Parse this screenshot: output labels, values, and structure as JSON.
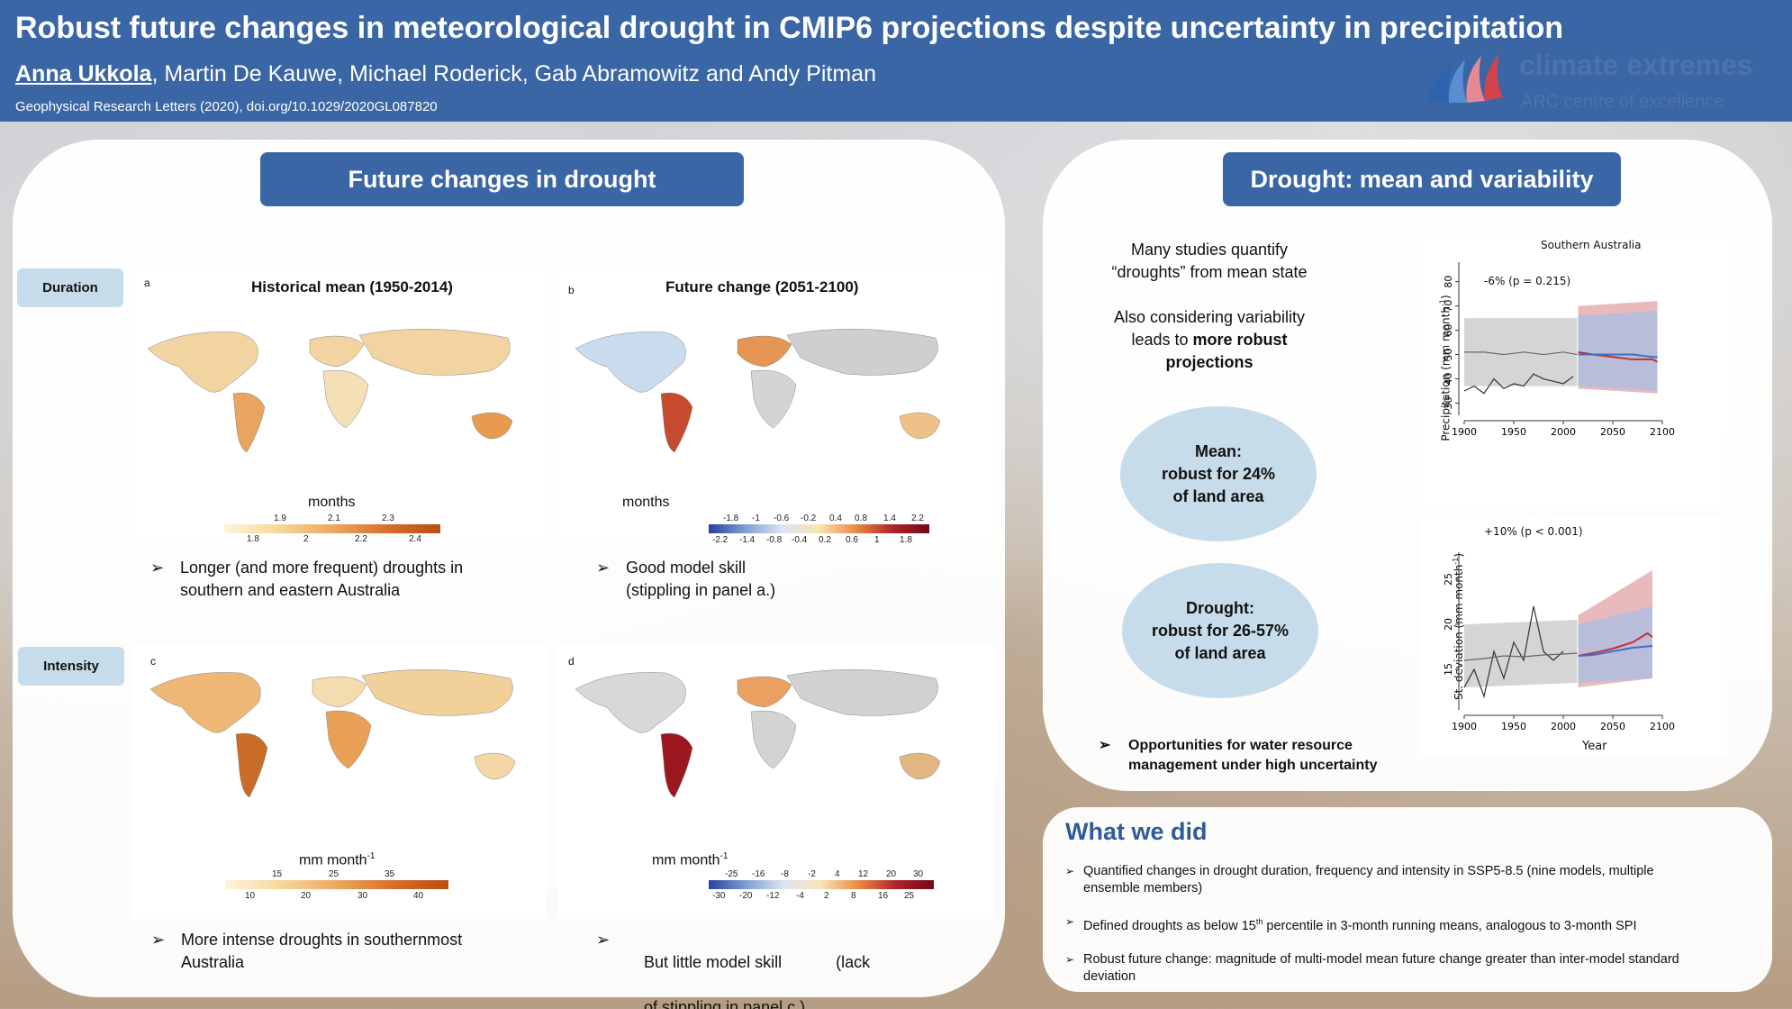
{
  "header": {
    "title": "Robust future changes in meteorological drought in CMIP6 projections despite uncertainty in precipitation",
    "lead_author": "Anna Ukkola",
    "other_authors": ", Martin De Kauwe, Michael Roderick, Gab Abramowitz and Andy Pitman",
    "citation": "Geophysical Research Letters (2020), doi.org/10.1029/2020GL087820",
    "logo_line1": "climate extremes",
    "logo_line2": "ARC centre of excellence"
  },
  "left": {
    "heading": "Future changes in drought",
    "duration_label": "Duration",
    "intensity_label": "Intensity",
    "map_a": {
      "letter": "a",
      "title": "Historical mean (1950-2014)",
      "unit": "months",
      "ticks_top": [
        "1.9",
        "2.1",
        "2.3"
      ],
      "ticks_bottom": [
        "1.8",
        "2",
        "2.2",
        "2.4"
      ]
    },
    "map_b": {
      "letter": "b",
      "title": "Future change (2051-2100)",
      "unit": "months",
      "ticks_top": [
        "-1.8",
        "-1",
        "-0.6",
        "-0.2",
        "0.4",
        "0.8",
        "1.4",
        "2.2"
      ],
      "ticks_bottom": [
        "-2.2",
        "-1.4",
        "-0.8",
        "-0.4",
        "0.2",
        "0.6",
        "1",
        "1.8"
      ]
    },
    "map_c": {
      "letter": "c",
      "unit_main": "mm month",
      "unit_sup": "-1",
      "ticks_top": [
        "15",
        "25",
        "35"
      ],
      "ticks_bottom": [
        "10",
        "20",
        "30",
        "40"
      ]
    },
    "map_d": {
      "letter": "d",
      "unit_main": "mm month",
      "unit_sup": "-1",
      "ticks_top": [
        "-25",
        "-16",
        "-8",
        "-2",
        "4",
        "12",
        "20",
        "30"
      ],
      "ticks_bottom": [
        "-30",
        "-20",
        "-12",
        "-4",
        "2",
        "8",
        "16",
        "25"
      ]
    },
    "bullet_a_line1": "Longer (and more frequent) droughts in",
    "bullet_a_line2": "southern and eastern Australia",
    "bullet_b_line1": "Good model skill",
    "bullet_b_line2": "(stippling in panel a.)",
    "bullet_c_line1": "More intense droughts in southernmost",
    "bullet_c_line2": "Australia",
    "bullet_d_line1": "But little model skill            (lack",
    "bullet_d_line2": "of stippling in panel c.)"
  },
  "right": {
    "heading": "Drought: mean and variability",
    "text1_line1": "Many studies quantify",
    "text1_line2": "“droughts” from mean state",
    "text2_line1": "Also considering variability",
    "text2_line2_a": "leads to ",
    "text2_line2_b": "more robust",
    "text2_line3": "projections",
    "oval_mean": [
      "Mean:",
      "robust for 24%",
      "of land area"
    ],
    "oval_drought": [
      "Drought:",
      "robust for 26-57%",
      "of land area"
    ],
    "bullet_line1": "Opportunities for water resource",
    "bullet_line2": "management under high uncertainty"
  },
  "chart_data": [
    {
      "type": "line",
      "title": "Southern Australia",
      "annotation": "-6% (p = 0.215)",
      "ylabel": "Precipitation (mm month",
      "ylabel_sup": "-1",
      "ylabel_close": ")",
      "xlim": [
        1900,
        2100
      ],
      "ylim": [
        25,
        88
      ],
      "xticks": [
        1900,
        1950,
        2000,
        2050,
        2100
      ],
      "yticks": [
        30,
        40,
        50,
        60,
        70,
        80
      ],
      "series": [
        {
          "color": "#333333",
          "x": [
            1900,
            1910,
            1920,
            1930,
            1940,
            1950,
            1960,
            1970,
            1980,
            1990,
            2000,
            2010
          ],
          "y": [
            35,
            37,
            34,
            40,
            36,
            38,
            37,
            42,
            40,
            39,
            38,
            41
          ]
        },
        {
          "color": "#666666",
          "x": [
            1900,
            1920,
            1940,
            1960,
            1980,
            2000,
            2014
          ],
          "y": [
            51,
            51,
            50,
            51,
            50,
            51,
            50
          ]
        },
        {
          "color": "#c0322d",
          "x": [
            2015,
            2030,
            2050,
            2070,
            2090,
            2095
          ],
          "y": [
            51,
            50,
            49,
            48,
            48,
            47
          ]
        },
        {
          "color": "#3f6fc4",
          "x": [
            2015,
            2030,
            2050,
            2070,
            2090,
            2095
          ],
          "y": [
            50,
            50,
            50,
            50,
            49,
            49
          ]
        }
      ],
      "bands": [
        {
          "color": "#c7c7c7",
          "x": [
            1900,
            2014
          ],
          "low": [
            37,
            37
          ],
          "high": [
            65,
            65
          ]
        },
        {
          "color": "#e0a3a6",
          "x": [
            2015,
            2095
          ],
          "low": [
            36,
            34
          ],
          "high": [
            70,
            72
          ]
        },
        {
          "color": "#a9bde3",
          "x": [
            2015,
            2095
          ],
          "low": [
            37,
            35
          ],
          "high": [
            66,
            68
          ]
        }
      ]
    },
    {
      "type": "line",
      "annotation": "+10% (p < 0.001)",
      "ylabel": "St. deviation (mm month",
      "ylabel_sup": "-1",
      "ylabel_close": ")",
      "xlabel": "Year",
      "xlim": [
        1900,
        2100
      ],
      "ylim": [
        10.5,
        28
      ],
      "xticks": [
        1900,
        1950,
        2000,
        2050,
        2100
      ],
      "yticks": [
        15,
        20,
        25
      ],
      "series": [
        {
          "color": "#333333",
          "x": [
            1900,
            1910,
            1920,
            1930,
            1940,
            1950,
            1960,
            1970,
            1980,
            1990,
            2000
          ],
          "y": [
            13,
            15,
            12,
            17,
            14,
            18,
            16,
            22,
            17,
            16,
            17
          ]
        },
        {
          "color": "#666666",
          "x": [
            1900,
            1920,
            1940,
            1960,
            1980,
            2000,
            2014
          ],
          "y": [
            16,
            16.2,
            16.5,
            16.4,
            16.6,
            16.7,
            16.8
          ]
        },
        {
          "color": "#c0322d",
          "x": [
            2015,
            2030,
            2050,
            2070,
            2085,
            2090
          ],
          "y": [
            16.5,
            16.8,
            17.3,
            18,
            19,
            18.6
          ]
        },
        {
          "color": "#3f6fc4",
          "x": [
            2015,
            2030,
            2050,
            2070,
            2090
          ],
          "y": [
            16.5,
            16.6,
            17,
            17.4,
            17.6
          ]
        }
      ],
      "bands": [
        {
          "color": "#c7c7c7",
          "x": [
            1900,
            2014
          ],
          "low": [
            13,
            13.5
          ],
          "high": [
            20,
            20.5
          ]
        },
        {
          "color": "#e0a3a6",
          "x": [
            2015,
            2090
          ],
          "low": [
            13,
            14
          ],
          "high": [
            21,
            26
          ]
        },
        {
          "color": "#a9bde3",
          "x": [
            2015,
            2090
          ],
          "low": [
            13.5,
            14
          ],
          "high": [
            20,
            22
          ]
        }
      ]
    }
  ],
  "bottom": {
    "heading": "What we did",
    "b1_line1": "Quantified changes in drought duration, frequency and intensity in SSP5-8.5 (nine models, multiple",
    "b1_line2": "ensemble members)",
    "b2_pre": "Defined droughts as below 15",
    "b2_sup": "th",
    "b2_post": " percentile in 3-month running means, analogous to 3-month SPI",
    "b3_line1": "Robust future change: magnitude of multi-model mean future change greater than inter-model standard",
    "b3_line2": "deviation"
  }
}
